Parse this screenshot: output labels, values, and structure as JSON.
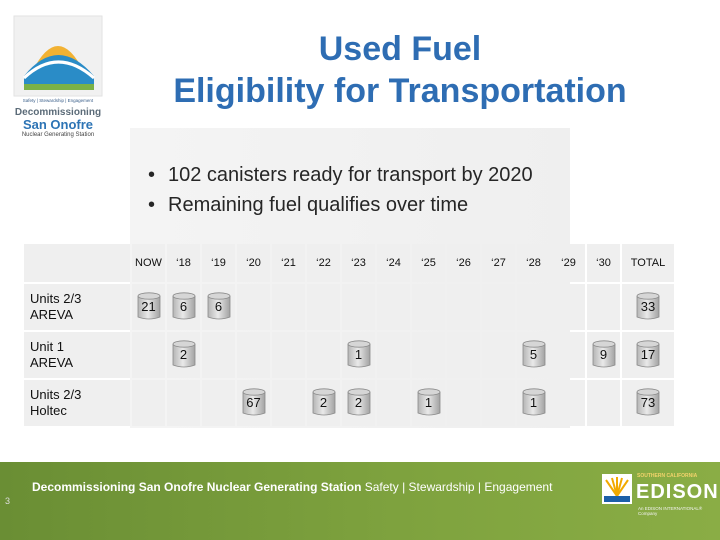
{
  "logo": {
    "tagline": "Safety | Stewardship | Engagement",
    "title_line1": "Decommissioning",
    "title_line2": "San Onofre",
    "subtitle": "Nuclear Generating Station"
  },
  "title": {
    "line1": "Used Fuel",
    "line2": "Eligibility for Transportation"
  },
  "bullets": [
    "102 canisters ready for transport by 2020",
    "Remaining fuel qualifies over time"
  ],
  "table": {
    "columns": [
      "NOW",
      "‘18",
      "‘19",
      "‘20",
      "‘21",
      "‘22",
      "‘23",
      "‘24",
      "‘25",
      "‘26",
      "‘27",
      "‘28",
      "‘29",
      "‘30",
      "TOTAL"
    ],
    "rows": [
      {
        "label_line1": "Units 2/3",
        "label_line2": "AREVA",
        "cells": [
          "21",
          "6",
          "6",
          "",
          "",
          "",
          "",
          "",
          "",
          "",
          "",
          "",
          "",
          "",
          "33"
        ]
      },
      {
        "label_line1": "Unit 1",
        "label_line2": "AREVA",
        "cells": [
          "",
          "2",
          "",
          "",
          "",
          "",
          "1",
          "",
          "",
          "",
          "",
          "5",
          "",
          "9",
          "17"
        ]
      },
      {
        "label_line1": "Units 2/3",
        "label_line2": "Holtec",
        "cells": [
          "",
          "",
          "",
          "67",
          "",
          "2",
          "2",
          "",
          "1",
          "",
          "",
          "1",
          "",
          "",
          "73"
        ]
      }
    ]
  },
  "page_number": "3",
  "footer": {
    "page_number": "3",
    "title": "Decommissioning San Onofre Nuclear Generating Station",
    "tagline": "Safety | Stewardship | Engagement",
    "edison_small": "SOUTHERN CALIFORNIA",
    "edison_word": "EDISON",
    "edison_tag": "An EDISON INTERNATIONAL® Company"
  },
  "colors": {
    "title": "#2e6db3",
    "footer": "#7ea23e",
    "cell": "#efefef"
  }
}
